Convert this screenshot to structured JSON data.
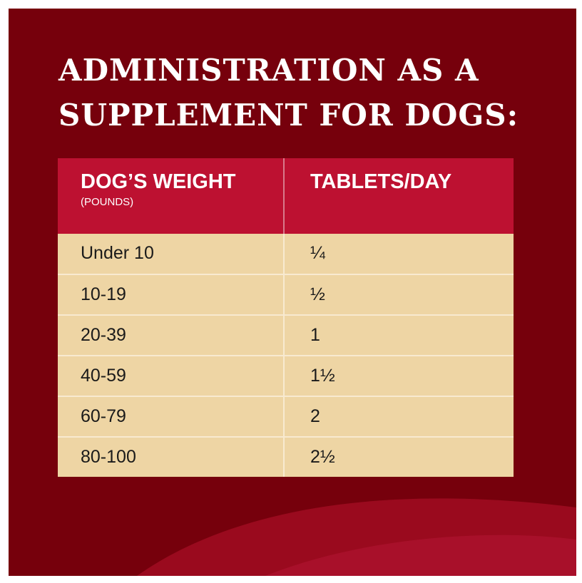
{
  "colors": {
    "background": "#76000c",
    "header": "#bd1131",
    "row": "#eed5a4",
    "text_light": "#ffffff",
    "text_dark": "#1a1a1a"
  },
  "title": {
    "line1": "ADMINISTRATION AS A",
    "line2": "SUPPLEMENT FOR DOGS:"
  },
  "table": {
    "headers": {
      "weight": "DOG’S WEIGHT",
      "weight_unit": "(POUNDS)",
      "tablets": "TABLETS/DAY"
    },
    "rows": [
      {
        "weight": "Under 10",
        "tablets": "¼"
      },
      {
        "weight": "10-19",
        "tablets": "½"
      },
      {
        "weight": "20-39",
        "tablets": "1"
      },
      {
        "weight": "40-59",
        "tablets": "1½"
      },
      {
        "weight": "60-79",
        "tablets": "2"
      },
      {
        "weight": "80-100",
        "tablets": "2½"
      }
    ]
  }
}
